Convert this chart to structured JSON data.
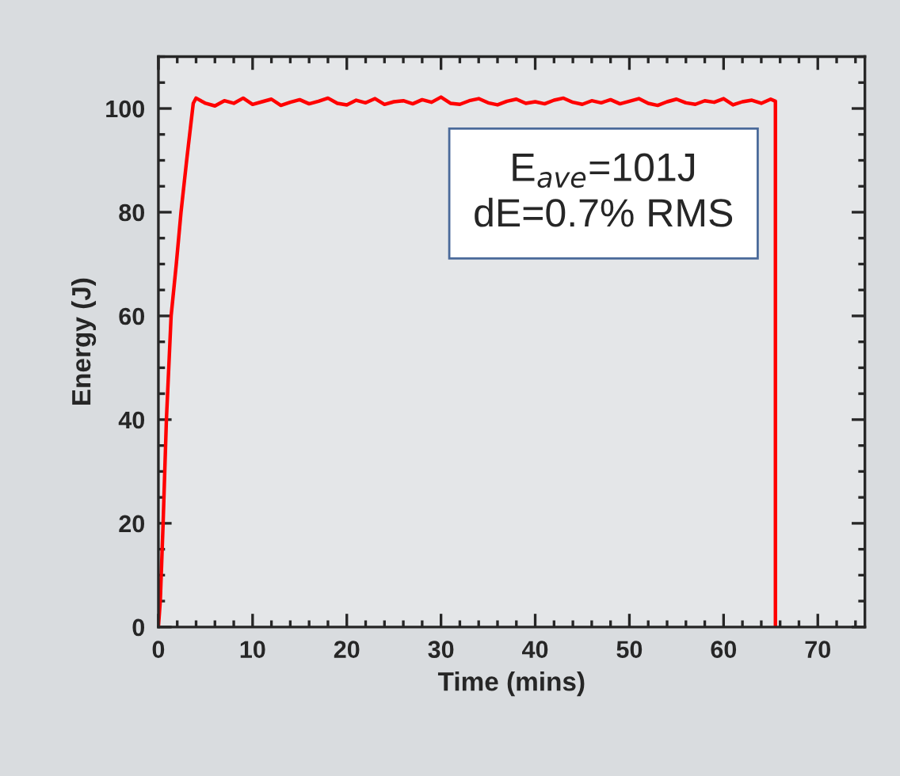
{
  "chart_data": {
    "type": "line",
    "xlabel": "Time (mins)",
    "ylabel": "Energy (J)",
    "annotations": [
      "E$_{ave}$=101J\ndE=0.7% RMS"
    ],
    "xlim": [
      0,
      75
    ],
    "ylim": [
      0,
      110
    ],
    "xticks": [
      0,
      {
        "value": 2,
        "label": null
      },
      {
        "value": 4,
        "label": null
      },
      {
        "value": 6,
        "label": null
      },
      {
        "value": 8,
        "label": null
      },
      10,
      {
        "value": 12,
        "label": null
      },
      {
        "value": 14,
        "label": null
      },
      {
        "value": 16,
        "label": null
      },
      {
        "value": 18,
        "label": null
      },
      20,
      {
        "value": 22,
        "label": null
      },
      {
        "value": 24,
        "label": null
      },
      {
        "value": 26,
        "label": null
      },
      {
        "value": 28,
        "label": null
      },
      30,
      {
        "value": 32,
        "label": null
      },
      {
        "value": 34,
        "label": null
      },
      {
        "value": 36,
        "label": null
      },
      {
        "value": 38,
        "label": null
      },
      40,
      {
        "value": 42,
        "label": null
      },
      {
        "value": 44,
        "label": null
      },
      {
        "value": 46,
        "label": null
      },
      {
        "value": 48,
        "label": null
      },
      50,
      {
        "value": 52,
        "label": null
      },
      {
        "value": 54,
        "label": null
      },
      {
        "value": 56,
        "label": null
      },
      {
        "value": 58,
        "label": null
      },
      60,
      {
        "value": 62,
        "label": null
      },
      {
        "value": 64,
        "label": null
      },
      {
        "value": 66,
        "label": null
      },
      {
        "value": 68,
        "label": null
      },
      70,
      {
        "value": 72,
        "label": null
      },
      {
        "value": 74,
        "label": null
      }
    ],
    "yticks": [
      0,
      {
        "value": 5,
        "label": null
      },
      {
        "value": 10,
        "label": null
      },
      {
        "value": 15,
        "label": null
      },
      20,
      {
        "value": 25,
        "label": null
      },
      {
        "value": 30,
        "label": null
      },
      {
        "value": 35,
        "label": null
      },
      40,
      {
        "value": 45,
        "label": null
      },
      {
        "value": 50,
        "label": null
      },
      {
        "value": 55,
        "label": null
      },
      60,
      {
        "value": 65,
        "label": null
      },
      {
        "value": 70,
        "label": null
      },
      {
        "value": 75,
        "label": null
      },
      80,
      {
        "value": 85,
        "label": null
      },
      {
        "value": 90,
        "label": null
      },
      {
        "value": 95,
        "label": null
      },
      100,
      {
        "value": 105,
        "label": null
      },
      {
        "value": 110,
        "label": null
      }
    ],
    "grid": false,
    "legend": false,
    "marker": "none",
    "line_style": "solid",
    "series": [
      {
        "color": "#ff0000",
        "x": [
          0,
          0.2,
          0.5,
          0.85,
          1.35,
          1.9,
          2.4,
          3.0,
          3.7,
          4,
          5,
          6,
          7,
          8,
          9,
          10,
          11,
          12,
          13,
          14,
          15,
          16,
          17,
          18,
          19,
          20,
          21,
          22,
          23,
          24,
          25,
          26,
          27,
          28,
          29,
          30,
          31,
          32,
          33,
          34,
          35,
          36,
          37,
          38,
          39,
          40,
          41,
          42,
          43,
          44,
          45,
          46,
          47,
          48,
          49,
          50,
          51,
          52,
          53,
          54,
          55,
          56,
          57,
          58,
          59,
          60,
          61,
          62,
          63,
          64,
          65,
          65.5,
          65.5
        ],
        "values": [
          0,
          5,
          20,
          40,
          60,
          70,
          80,
          90,
          101,
          102,
          101,
          100.5,
          101.5,
          101,
          102,
          100.8,
          101.3,
          101.8,
          100.6,
          101.2,
          101.7,
          100.9,
          101.4,
          102,
          101,
          100.7,
          101.6,
          101.1,
          101.9,
          100.8,
          101.3,
          101.5,
          100.9,
          101.7,
          101.2,
          102.2,
          101,
          100.8,
          101.5,
          101.9,
          101.1,
          100.7,
          101.4,
          101.8,
          101,
          101.3,
          100.9,
          101.6,
          102,
          101.2,
          100.8,
          101.5,
          101.1,
          101.7,
          100.9,
          101.4,
          101.9,
          101,
          100.6,
          101.3,
          101.8,
          101.1,
          100.8,
          101.5,
          101.2,
          101.9,
          100.7,
          101.3,
          101.6,
          101,
          101.8,
          101.4,
          0
        ]
      }
    ]
  }
}
